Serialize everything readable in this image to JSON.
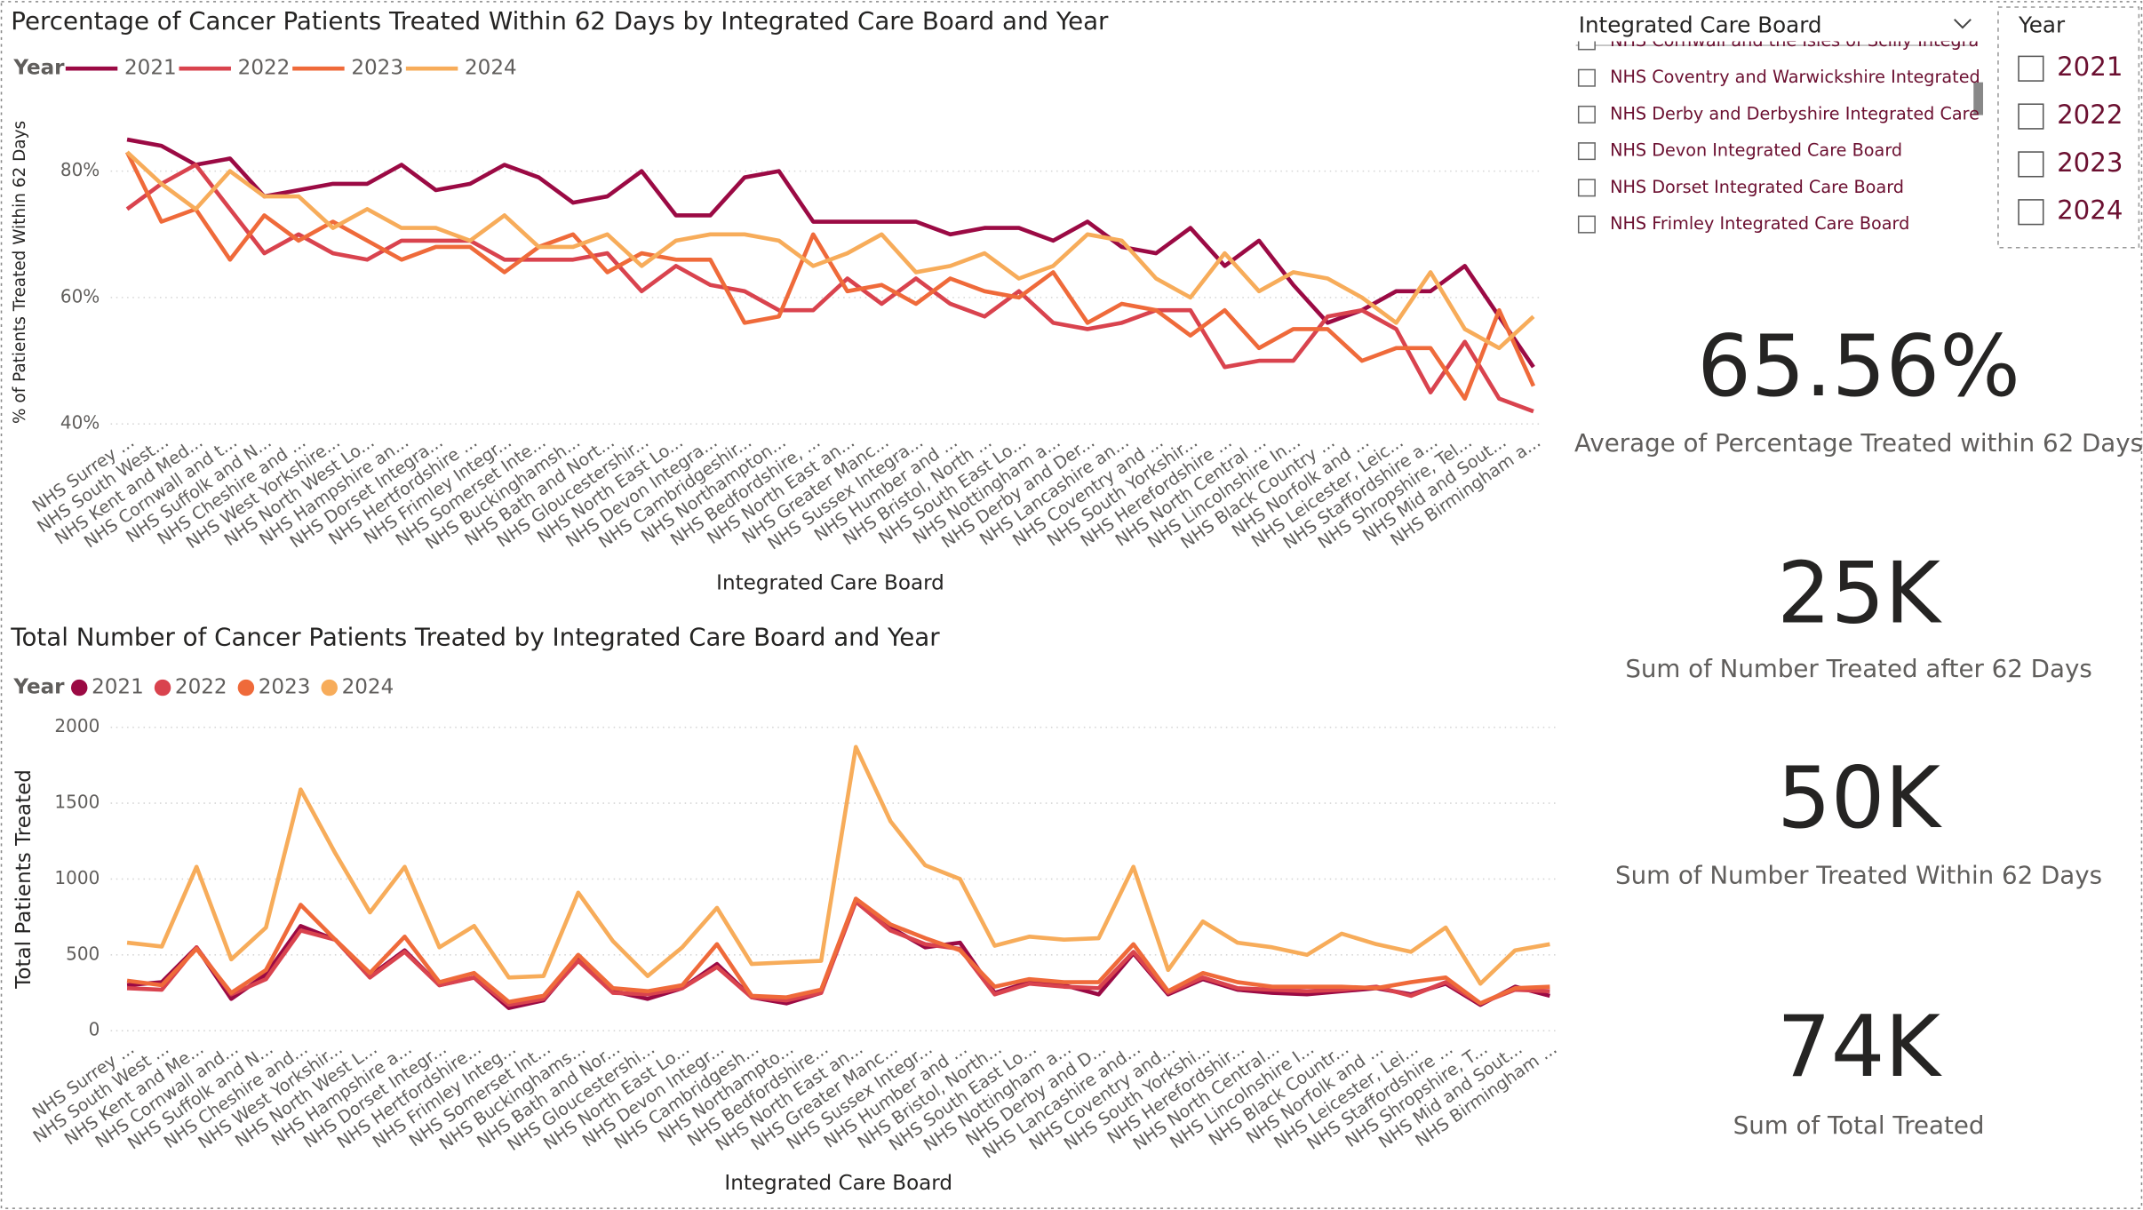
{
  "chart_data": [
    {
      "type": "line",
      "title": "Percentage of Cancer Patients Treated Within 62 Days by Integrated Care Board and Year",
      "legend_title": "Year",
      "legend_marker": "line",
      "x_label": "Integrated Care Board",
      "y_label": "% of Patients Treated Within 62 Days",
      "categories": [
        "NHS Surrey ...",
        "NHS South West...",
        "NHS Kent and Med...",
        "NHS Cornwall and t...",
        "NHS Suffolk and N...",
        "NHS Cheshire and ...",
        "NHS West Yorkshire...",
        "NHS North West Lo...",
        "NHS Hampshire an...",
        "NHS Dorset Integra...",
        "NHS Hertfordshire ...",
        "NHS Frimley Integr...",
        "NHS Somerset Inte...",
        "NHS Buckinghamsh...",
        "NHS Bath and Nort...",
        "NHS Gloucestershir...",
        "NHS North East Lo...",
        "NHS Devon Integra...",
        "NHS Cambridgeshir...",
        "NHS Northampton...",
        "NHS Bedfordshire, ...",
        "NHS North East an...",
        "NHS Greater Manc...",
        "NHS Sussex Integra...",
        "NHS Humber and ...",
        "NHS Bristol, North ...",
        "NHS South East Lo...",
        "NHS Nottingham a...",
        "NHS Derby and Der...",
        "NHS Lancashire an...",
        "NHS Coventry and ...",
        "NHS South Yorkshir...",
        "NHS Herefordshire ...",
        "NHS North Central ...",
        "NHS Lincolnshire In...",
        "NHS Black Country ...",
        "NHS Norfolk and ...",
        "NHS Leicester, Leic...",
        "NHS Staffordshire a...",
        "NHS Shropshire, Tel...",
        "NHS Mid and Sout...",
        "NHS Birmingham a..."
      ],
      "series": [
        {
          "name": "2021",
          "color": "#9b0a44",
          "values": [
            85,
            84,
            81,
            82,
            76,
            77,
            78,
            78,
            81,
            77,
            78,
            81,
            79,
            75,
            76,
            80,
            73,
            73,
            79,
            80,
            72,
            72,
            72,
            72,
            70,
            71,
            71,
            69,
            72,
            68,
            67,
            71,
            65,
            69,
            62,
            56,
            58,
            61,
            61,
            65,
            57,
            49
          ]
        },
        {
          "name": "2022",
          "color": "#d9434e",
          "values": [
            74,
            78,
            81,
            74,
            67,
            70,
            67,
            66,
            69,
            69,
            69,
            66,
            66,
            66,
            67,
            61,
            65,
            62,
            61,
            58,
            58,
            63,
            59,
            63,
            59,
            57,
            61,
            56,
            55,
            56,
            58,
            58,
            49,
            50,
            50,
            57,
            58,
            55,
            45,
            53,
            44,
            42
          ]
        },
        {
          "name": "2023",
          "color": "#ef6a3a",
          "values": [
            83,
            72,
            74,
            66,
            73,
            69,
            72,
            69,
            66,
            68,
            68,
            64,
            68,
            70,
            64,
            67,
            66,
            66,
            56,
            57,
            70,
            61,
            62,
            59,
            63,
            61,
            60,
            64,
            56,
            59,
            58,
            54,
            58,
            52,
            55,
            55,
            50,
            52,
            52,
            44,
            58,
            46
          ]
        },
        {
          "name": "2024",
          "color": "#f7ac5a",
          "values": [
            83,
            78,
            74,
            80,
            76,
            76,
            71,
            74,
            71,
            71,
            69,
            73,
            68,
            68,
            70,
            65,
            69,
            70,
            70,
            69,
            65,
            67,
            70,
            64,
            65,
            67,
            63,
            65,
            70,
            69,
            63,
            60,
            67,
            61,
            64,
            63,
            60,
            56,
            64,
            55,
            52,
            57
          ]
        }
      ],
      "ylim": [
        40,
        88
      ],
      "yticks": [
        {
          "value": 40,
          "label": "40%"
        },
        {
          "value": 60,
          "label": "60%"
        },
        {
          "value": 80,
          "label": "80%"
        }
      ],
      "grid": true
    },
    {
      "type": "line",
      "title": "Total Number of Cancer Patients Treated by Integrated Care Board and Year",
      "legend_title": "Year",
      "legend_marker": "circle",
      "x_label": "Integrated Care Board",
      "y_label": "Total Patients Treated",
      "categories": [
        "NHS Surrey ...",
        "NHS South West ...",
        "NHS Kent and Me...",
        "NHS Cornwall and...",
        "NHS Suffolk and N...",
        "NHS Cheshire and...",
        "NHS West Yorkshir...",
        "NHS North West L...",
        "NHS Hampshire a...",
        "NHS Dorset Integr...",
        "NHS Hertfordshire...",
        "NHS Frimley Integ...",
        "NHS Somerset Int...",
        "NHS Buckinghams...",
        "NHS Bath and Nor...",
        "NHS Gloucestershi...",
        "NHS North East Lo...",
        "NHS Devon Integr...",
        "NHS Cambridgesh...",
        "NHS Northampto...",
        "NHS Bedfordshire...",
        "NHS North East an...",
        "NHS Greater Manc...",
        "NHS Sussex Integr...",
        "NHS Humber and ...",
        "NHS Bristol, North...",
        "NHS South East Lo...",
        "NHS Nottingham a...",
        "NHS Derby and D...",
        "NHS Lancashire and...",
        "NHS Coventry and...",
        "NHS South Yorkshi...",
        "NHS Herefordshir...",
        "NHS North Central...",
        "NHS Lincolnshire I...",
        "NHS Black Countr...",
        "NHS Norfolk and ...",
        "NHS Leicester, Lei...",
        "NHS Staffordshire ...",
        "NHS Shropshire, T...",
        "NHS Mid and Sout...",
        "NHS Birmingham ..."
      ],
      "series": [
        {
          "name": "2021",
          "color": "#9b0a44",
          "values": [
            300,
            320,
            550,
            210,
            370,
            690,
            600,
            360,
            530,
            300,
            350,
            150,
            200,
            470,
            260,
            210,
            280,
            440,
            220,
            180,
            250,
            860,
            680,
            550,
            580,
            250,
            320,
            300,
            240,
            510,
            240,
            340,
            270,
            250,
            240,
            260,
            280,
            240,
            310,
            170,
            290,
            230
          ]
        },
        {
          "name": "2022",
          "color": "#d9434e",
          "values": [
            280,
            270,
            550,
            240,
            340,
            660,
            600,
            350,
            520,
            300,
            350,
            170,
            210,
            460,
            250,
            240,
            280,
            420,
            220,
            200,
            250,
            850,
            660,
            570,
            540,
            240,
            310,
            290,
            280,
            520,
            250,
            350,
            280,
            270,
            260,
            270,
            290,
            230,
            320,
            180,
            270,
            260
          ]
        },
        {
          "name": "2023",
          "color": "#ef6a3a",
          "values": [
            330,
            300,
            540,
            250,
            400,
            830,
            600,
            380,
            620,
            320,
            380,
            190,
            230,
            500,
            280,
            260,
            300,
            570,
            230,
            220,
            270,
            870,
            700,
            610,
            530,
            290,
            340,
            320,
            320,
            570,
            260,
            380,
            320,
            290,
            290,
            290,
            280,
            320,
            350,
            180,
            280,
            290
          ]
        },
        {
          "name": "2024",
          "color": "#f7ac5a",
          "values": [
            580,
            555,
            1080,
            470,
            680,
            1590,
            1170,
            780,
            1080,
            550,
            690,
            350,
            360,
            910,
            590,
            360,
            550,
            810,
            440,
            450,
            460,
            1870,
            1380,
            1090,
            1000,
            560,
            620,
            600,
            610,
            1080,
            400,
            720,
            580,
            550,
            500,
            640,
            570,
            520,
            680,
            310,
            530,
            570
          ]
        }
      ],
      "ylim": [
        0,
        2000
      ],
      "yticks": [
        0,
        500,
        1000,
        1500,
        2000
      ],
      "grid": true
    }
  ],
  "icb_slicer": {
    "title": "Integrated Care Board",
    "items": [
      "NHS Cornwall and the Isles of Scilly Integrated...",
      "NHS Coventry and Warwickshire Integrated C...",
      "NHS Derby and Derbyshire Integrated Care B...",
      "NHS Devon Integrated Care Board",
      "NHS Dorset Integrated Care Board",
      "NHS Frimley Integrated Care Board"
    ]
  },
  "year_slicer": {
    "title": "Year",
    "items": [
      "2021",
      "2022",
      "2023",
      "2024"
    ]
  },
  "kpis": [
    {
      "value": "65.56%",
      "label": "Average of Percentage Treated within 62 Days"
    },
    {
      "value": "25K",
      "label": "Sum of Number Treated after 62 Days"
    },
    {
      "value": "50K",
      "label": "Sum of Number Treated Within 62 Days"
    },
    {
      "value": "74K",
      "label": "Sum of Total Treated"
    }
  ]
}
